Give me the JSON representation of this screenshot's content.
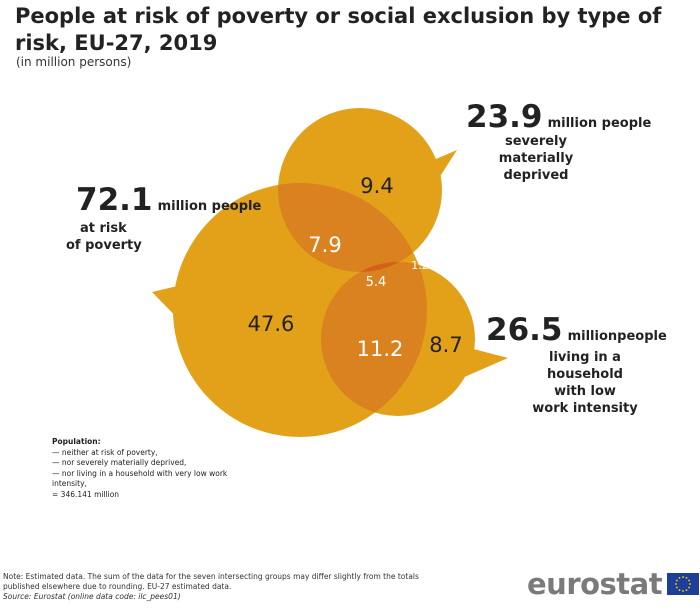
{
  "title": "People at risk of poverty or social exclusion by type of risk, EU-27, 2019",
  "subtitle": "(in million persons)",
  "colors": {
    "circle": "#e3a11a",
    "overlap_two": "#d9821f",
    "overlap_three": "#d4601a",
    "text_dark": "#222222"
  },
  "annotations": {
    "poverty": {
      "value": "72.1",
      "unit": "million people",
      "line1": "at risk",
      "line2": "of poverty"
    },
    "deprived": {
      "value": "23.9",
      "unit": "million people",
      "line1": "severely materially",
      "line2": "deprived"
    },
    "work": {
      "value": "26.5",
      "unit": "millionpeople",
      "line1": "living in a household",
      "line2": "with low",
      "line3": "work intensity"
    }
  },
  "chart_data": {
    "type": "venn",
    "title": "People at risk of poverty or social exclusion by type of risk, EU-27, 2019",
    "subtitle": "(in million persons)",
    "sets": [
      {
        "key": "poverty",
        "name": "at risk of poverty",
        "total": 72.1
      },
      {
        "key": "deprived",
        "name": "severely materially deprived",
        "total": 23.9
      },
      {
        "key": "work",
        "name": "living in a household with low work intensity",
        "total": 26.5
      }
    ],
    "regions": {
      "poverty_only": "47.6",
      "deprived_only": "9.4",
      "work_only": "8.7",
      "poverty_deprived": "7.9",
      "poverty_work": "11.2",
      "deprived_work": "1.2",
      "all_three": "5.4"
    }
  },
  "population": {
    "heading": "Population:",
    "line1": "— neither at risk of poverty,",
    "line2": "— nor severely materially deprived,",
    "line3": "— nor living in a household with very low work",
    "line4": "intensity,",
    "line5": "= 346.141 million"
  },
  "note": {
    "line1": "Note: Estimated data. The sum of the data for the seven intersecting groups may differ slightly from the totals",
    "line2": "published elsewhere due to rounding. EU-27 estimated data.",
    "source": "Source: Eurostat (online data code: ilc_pees01)"
  },
  "logo": {
    "text": "eurostat",
    "icon": "eu-flag-icon"
  }
}
